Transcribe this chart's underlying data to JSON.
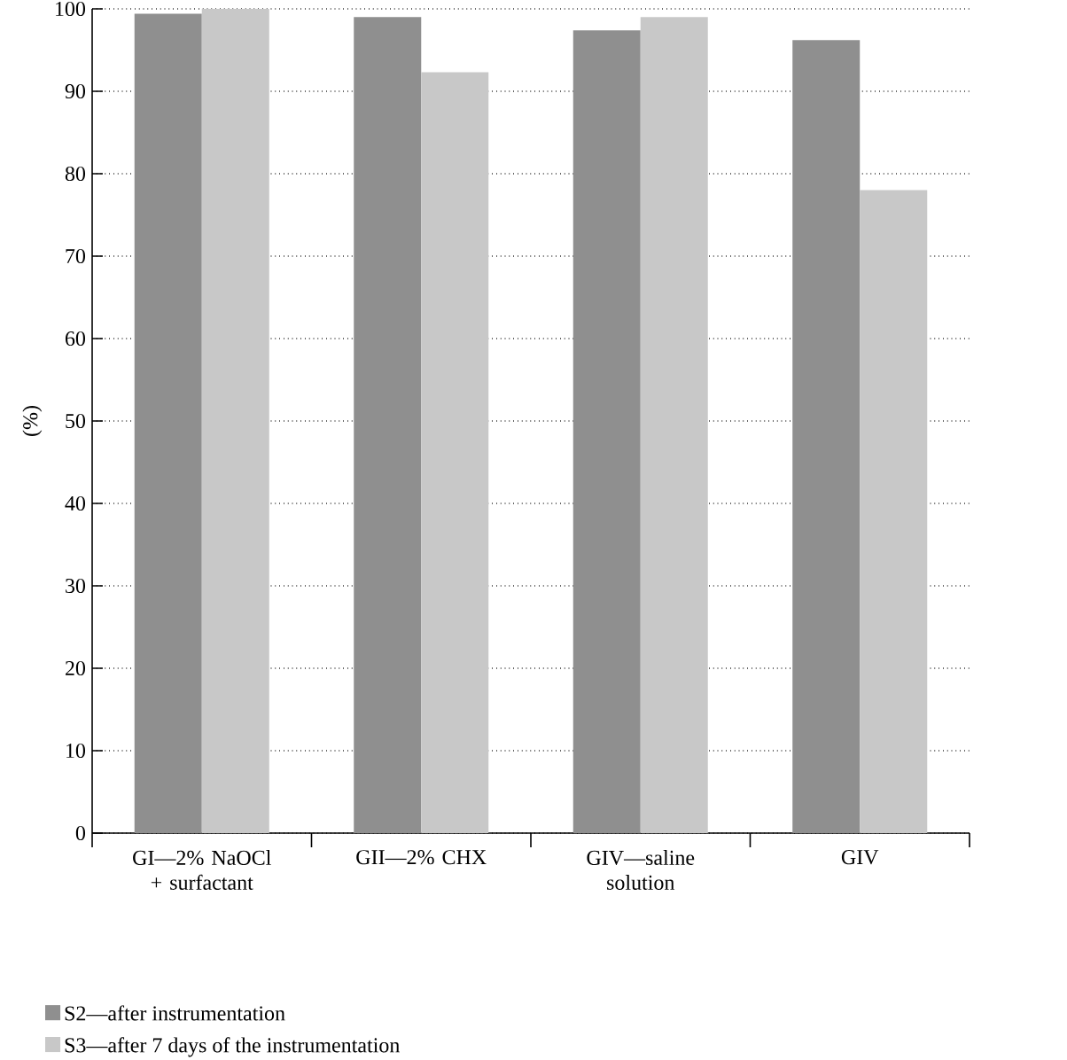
{
  "chart_data": {
    "type": "bar",
    "ylabel": "(%)",
    "categories": [
      "GI—2% NaOCl + surfactant",
      "GII—2% CHX",
      "GIV—saline solution",
      "GIV"
    ],
    "series": [
      {
        "name": "S2—after instrumentation",
        "color": "#8f8f8f",
        "values": [
          99.4,
          99.0,
          97.4,
          96.2
        ]
      },
      {
        "name": "S3—after 7 days of the instrumentation",
        "color": "#c8c8c8",
        "values": [
          100,
          92.3,
          99.0,
          78.0
        ]
      }
    ],
    "ylim": [
      0,
      100
    ],
    "yticks": [
      0,
      10,
      20,
      30,
      40,
      50,
      60,
      70,
      80,
      90,
      100
    ],
    "grid": "y",
    "legend": "bottom left"
  }
}
